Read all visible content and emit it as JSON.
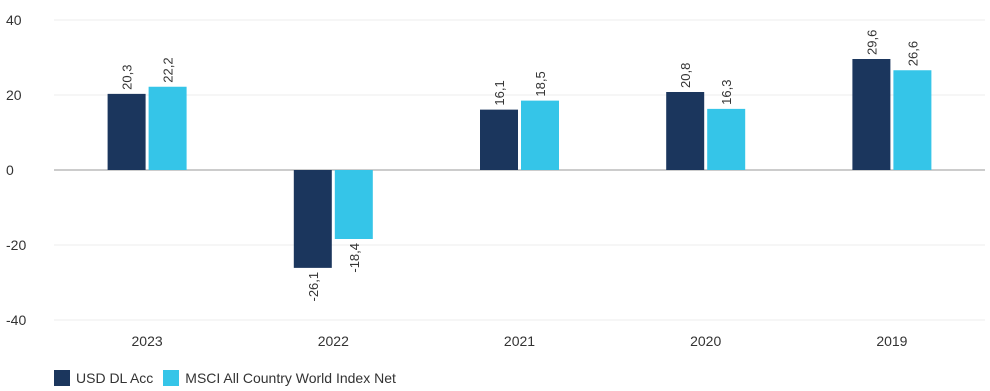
{
  "chart_data": {
    "type": "bar",
    "categories": [
      "2023",
      "2022",
      "2021",
      "2020",
      "2019"
    ],
    "series": [
      {
        "name": "USD DL Acc",
        "color": "#1b365d",
        "values": [
          20.3,
          -26.1,
          16.1,
          20.8,
          29.6
        ],
        "labels": [
          "20,3",
          "-26,1",
          "16,1",
          "20,8",
          "29,6"
        ]
      },
      {
        "name": "MSCI All Country World Index Net",
        "color": "#35c5e8",
        "values": [
          22.2,
          -18.4,
          18.5,
          16.3,
          26.6
        ],
        "labels": [
          "22,2",
          "-18,4",
          "18,5",
          "16,3",
          "26,6"
        ]
      }
    ],
    "y_ticks": [
      40,
      20,
      0,
      -20,
      -40
    ],
    "ylim": [
      -40,
      40
    ],
    "grid": true,
    "legend_position": "bottom-left",
    "title": "",
    "xlabel": "",
    "ylabel": ""
  }
}
